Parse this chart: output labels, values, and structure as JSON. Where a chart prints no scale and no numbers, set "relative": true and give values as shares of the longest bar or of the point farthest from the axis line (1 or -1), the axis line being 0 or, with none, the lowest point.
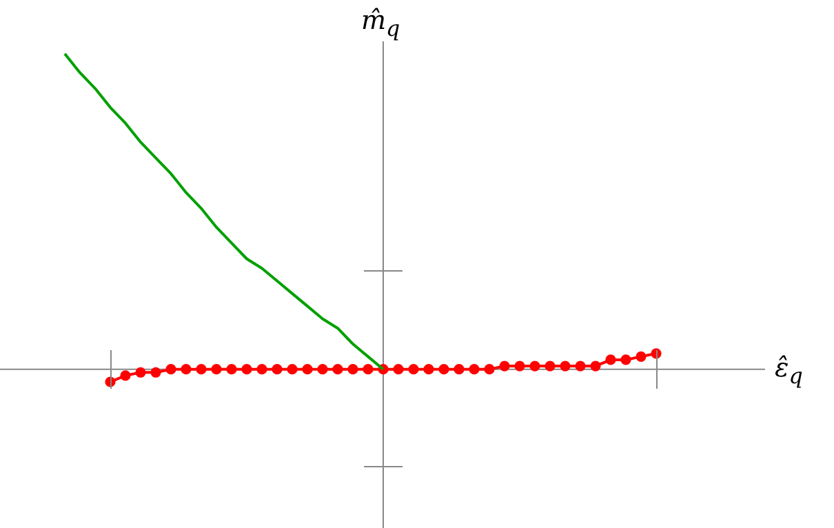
{
  "chart_data": {
    "type": "line",
    "relative": true,
    "xlabel": "ε̂$_{q}$",
    "ylabel": "m̂$_{q}$",
    "categories": [
      null,
      null,
      null,
      null,
      null,
      null,
      null,
      null,
      null,
      null,
      null,
      null,
      null,
      null,
      null,
      null,
      null,
      null,
      null,
      null,
      null,
      null,
      null,
      null,
      null,
      null,
      null,
      null,
      null,
      null,
      null,
      null,
      null,
      null,
      null,
      null,
      null,
      null,
      null,
      null
    ],
    "series": [
      {
        "color": "#00a000",
        "marker": "none",
        "values": [
          1,
          0.94,
          0.89,
          0.83,
          0.78,
          0.72,
          0.67,
          0.62,
          0.56,
          0.51,
          0.45,
          0.4,
          0.35,
          0.32,
          0.28,
          0.24,
          0.2,
          0.16,
          0.13,
          0.08,
          0.04,
          0,
          null,
          null,
          null,
          null,
          null,
          null,
          null,
          null,
          null,
          null,
          null,
          null,
          null,
          null,
          null,
          null,
          null,
          null
        ]
      },
      {
        "color": "#ff0000",
        "marker": "circle",
        "values": [
          null,
          null,
          null,
          -0.04,
          -0.02,
          -0.01,
          -0.01,
          0,
          0,
          0,
          0,
          0,
          0,
          0,
          0,
          0,
          0,
          0,
          0,
          0,
          0,
          0,
          0,
          0,
          0,
          0,
          0,
          0,
          0,
          0.01,
          0.01,
          0.01,
          0.01,
          0.01,
          0.01,
          0.01,
          0.03,
          0.03,
          0.04,
          0.05
        ]
      }
    ],
    "legend": false
  }
}
